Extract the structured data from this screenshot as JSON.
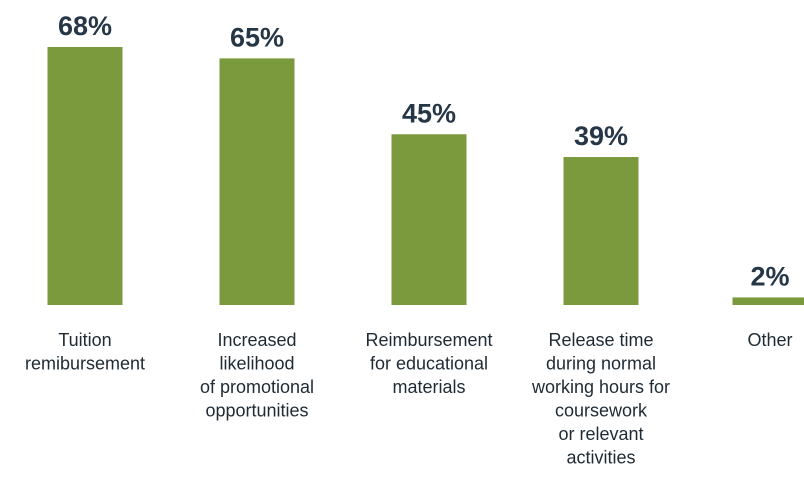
{
  "chart_data": {
    "type": "bar",
    "categories": [
      [
        "Tuition",
        "remibursement"
      ],
      [
        "Increased",
        "likelihood",
        "of promotional",
        "opportunities"
      ],
      [
        "Reimbursement",
        "for educational",
        "materials"
      ],
      [
        "Release time",
        "during normal",
        "working hours for",
        "coursework",
        "or relevant",
        "activities"
      ],
      [
        "Other"
      ]
    ],
    "values": [
      68,
      65,
      45,
      39,
      2
    ],
    "data_labels": [
      "68%",
      "65%",
      "45%",
      "39%",
      "2%"
    ],
    "unit": "%",
    "ylim": [
      0,
      68
    ],
    "grid": false,
    "legend": "none",
    "bar_color": "#7a9a3d",
    "label_color": "#253746"
  }
}
